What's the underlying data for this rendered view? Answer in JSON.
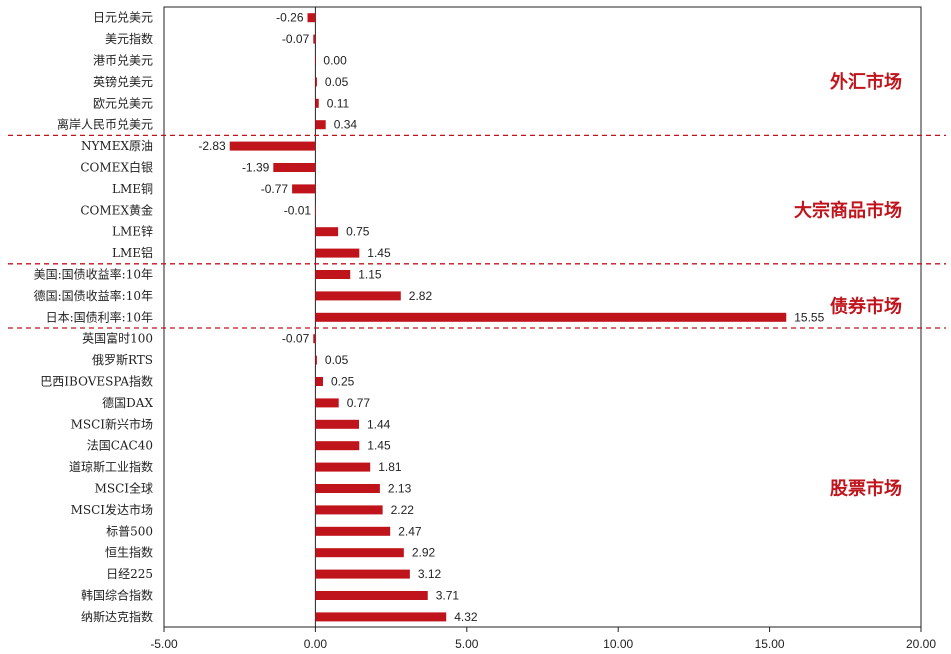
{
  "chart_data": {
    "type": "bar",
    "orientation": "horizontal",
    "title": "",
    "xlabel": "",
    "ylabel": "",
    "xlim": [
      -5,
      20
    ],
    "xticks": [
      -5,
      0,
      5,
      10,
      15,
      20
    ],
    "xtick_labels": [
      "-5.00",
      "0.00",
      "5.00",
      "10.00",
      "15.00",
      "20.00"
    ],
    "grid": false,
    "bar_color": "#c0141c",
    "separator_color": "#c0141c",
    "categories": [
      "日元兑美元",
      "美元指数",
      "港币兑美元",
      "英镑兑美元",
      "欧元兑美元",
      "离岸人民币兑美元",
      "NYMEX原油",
      "COMEX白银",
      "LME铜",
      "COMEX黄金",
      "LME锌",
      "LME铝",
      "美国:国债收益率:10年",
      "德国:国债收益率:10年",
      "日本:国债利率:10年",
      "英国富时100",
      "俄罗斯RTS",
      "巴西IBOVESPA指数",
      "德国DAX",
      "MSCI新兴市场",
      "法国CAC40",
      "道琼斯工业指数",
      "MSCI全球",
      "MSCI发达市场",
      "标普500",
      "恒生指数",
      "日经225",
      "韩国综合指数",
      "纳斯达克指数"
    ],
    "values": [
      -0.26,
      -0.07,
      0.0,
      0.05,
      0.11,
      0.34,
      -2.83,
      -1.39,
      -0.77,
      -0.01,
      0.75,
      1.45,
      1.15,
      2.82,
      15.55,
      -0.07,
      0.05,
      0.25,
      0.77,
      1.44,
      1.45,
      1.81,
      2.13,
      2.22,
      2.47,
      2.92,
      3.12,
      3.71,
      4.32
    ],
    "value_labels": [
      "-0.26",
      "-0.07",
      "0.00",
      "0.05",
      "0.11",
      "0.34",
      "-2.83",
      "-1.39",
      "-0.77",
      "-0.01",
      "0.75",
      "1.45",
      "1.15",
      "2.82",
      "15.55",
      "-0.07",
      "0.05",
      "0.25",
      "0.77",
      "1.44",
      "1.45",
      "1.81",
      "2.13",
      "2.22",
      "2.47",
      "2.92",
      "3.12",
      "3.71",
      "4.32"
    ],
    "groups": [
      {
        "label": "外汇市场",
        "start": 0,
        "end": 5
      },
      {
        "label": "大宗商品市场",
        "start": 6,
        "end": 11
      },
      {
        "label": "债券市场",
        "start": 12,
        "end": 14
      },
      {
        "label": "股票市场",
        "start": 15,
        "end": 28
      }
    ]
  }
}
